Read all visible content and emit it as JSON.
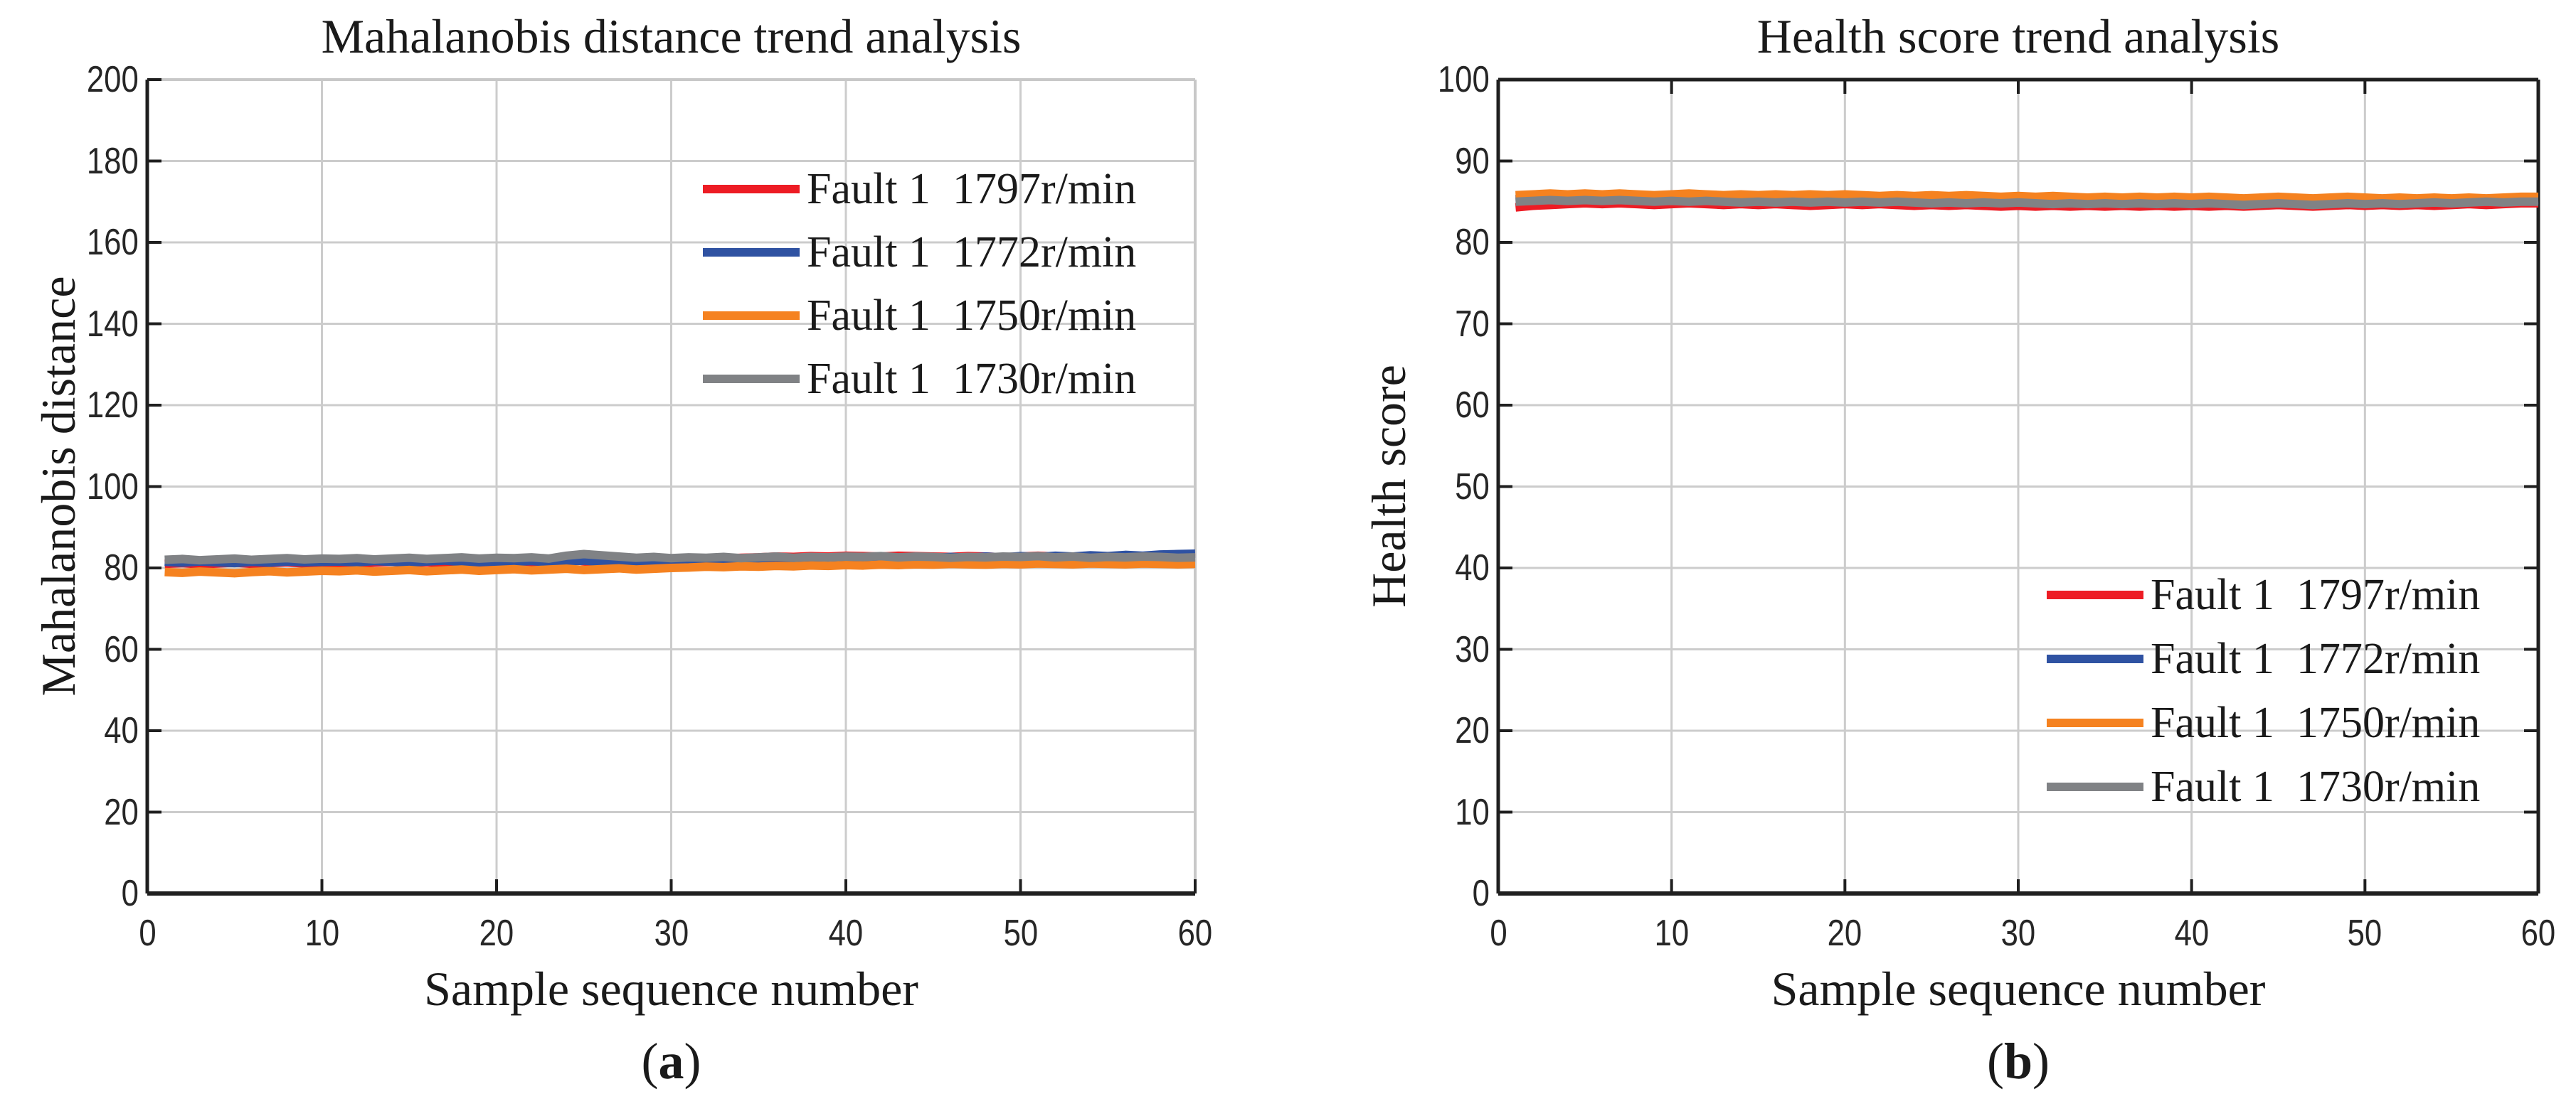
{
  "figure_captions": {
    "a": {
      "open": "(",
      "letter": "a",
      "close": ")"
    },
    "b": {
      "open": "(",
      "letter": "b",
      "close": ")"
    }
  },
  "style": {
    "series_red": "#ED1C24",
    "series_blue": "#2F52A2",
    "series_orange": "#F58220",
    "series_gray": "#808285",
    "grid_color": "#cccccc",
    "axis_color": "#1f1f1f",
    "soft_box_color": "#c8c8c8"
  },
  "chart_data": [
    {
      "id": "a",
      "type": "line",
      "title": "Mahalanobis distance trend analysis",
      "xlabel": "Sample sequence number",
      "ylabel": "Mahalanobis distance",
      "xlim": [
        0,
        60
      ],
      "ylim": [
        0,
        200
      ],
      "xticks": [
        0,
        10,
        20,
        30,
        40,
        50,
        60
      ],
      "yticks": [
        0,
        20,
        40,
        60,
        80,
        100,
        120,
        140,
        160,
        180,
        200
      ],
      "grid": true,
      "legend_location": "inside upper center-right",
      "box_style": "soft",
      "x_start": 1,
      "legend": [
        {
          "label": "Fault 1  1797r/min",
          "color": "#ED1C24"
        },
        {
          "label": "Fault 1  1772r/min",
          "color": "#2F52A2"
        },
        {
          "label": "Fault 1  1750r/min",
          "color": "#F58220"
        },
        {
          "label": "Fault 1  1730r/min",
          "color": "#808285"
        }
      ],
      "series": [
        {
          "name": "Fault 1  1797r/min",
          "color": "#ED1C24",
          "values": [
            81.0,
            81.2,
            80.9,
            81.1,
            81.3,
            81.0,
            81.2,
            81.4,
            81.1,
            81.3,
            81.2,
            81.0,
            81.3,
            81.5,
            81.2,
            81.4,
            81.1,
            81.3,
            81.2,
            81.4,
            81.3,
            81.1,
            81.8,
            82.3,
            81.6,
            81.4,
            81.9,
            81.5,
            81.3,
            81.5,
            81.8,
            82.0,
            82.3,
            82.5,
            82.6,
            82.8,
            82.7,
            82.9,
            82.8,
            83.0,
            82.9,
            82.8,
            83.0,
            82.9,
            82.8,
            82.7,
            82.9,
            82.8,
            82.6,
            82.8,
            83.0,
            82.8,
            82.6,
            82.5,
            82.4,
            82.6,
            82.5,
            82.4,
            82.6,
            82.5
          ]
        },
        {
          "name": "Fault 1  1772r/min",
          "color": "#2F52A2",
          "values": [
            81.5,
            81.3,
            81.6,
            81.4,
            81.2,
            81.5,
            81.3,
            81.6,
            81.4,
            81.5,
            81.6,
            81.4,
            81.7,
            81.5,
            81.3,
            81.6,
            81.8,
            81.5,
            81.4,
            81.6,
            81.5,
            81.7,
            81.4,
            81.6,
            81.8,
            81.5,
            81.7,
            81.6,
            81.4,
            81.7,
            81.6,
            81.8,
            82.0,
            81.9,
            82.1,
            82.2,
            82.0,
            82.3,
            82.1,
            82.4,
            82.2,
            82.5,
            82.3,
            82.6,
            82.4,
            82.7,
            82.5,
            82.8,
            82.6,
            82.9,
            82.7,
            83.0,
            82.8,
            83.1,
            82.9,
            83.2,
            83.0,
            83.3,
            83.4,
            83.5
          ]
        },
        {
          "name": "Fault 1  1750r/min",
          "color": "#F58220",
          "values": [
            79.0,
            78.8,
            79.1,
            78.9,
            78.7,
            79.0,
            79.2,
            78.9,
            79.1,
            79.3,
            79.2,
            79.4,
            79.1,
            79.3,
            79.5,
            79.2,
            79.4,
            79.6,
            79.3,
            79.5,
            79.7,
            79.4,
            79.6,
            79.8,
            79.5,
            79.7,
            79.9,
            79.6,
            79.8,
            80.0,
            80.1,
            80.3,
            80.2,
            80.4,
            80.3,
            80.5,
            80.4,
            80.6,
            80.5,
            80.7,
            80.6,
            80.8,
            80.7,
            80.9,
            80.8,
            81.0,
            80.9,
            80.8,
            81.0,
            80.9,
            81.1,
            81.0,
            80.9,
            81.1,
            81.0,
            80.9,
            81.1,
            81.0,
            80.9,
            81.0
          ]
        },
        {
          "name": "Fault 1  1730r/min",
          "color": "#808285",
          "values": [
            82.0,
            82.2,
            81.9,
            82.1,
            82.3,
            82.0,
            82.2,
            82.4,
            82.1,
            82.3,
            82.2,
            82.4,
            82.1,
            82.3,
            82.5,
            82.2,
            82.4,
            82.6,
            82.3,
            82.5,
            82.4,
            82.6,
            82.3,
            83.0,
            83.4,
            83.1,
            82.8,
            82.5,
            82.7,
            82.4,
            82.6,
            82.5,
            82.7,
            82.4,
            82.6,
            82.8,
            82.5,
            82.7,
            82.6,
            82.8,
            82.7,
            82.9,
            82.6,
            82.8,
            82.7,
            82.5,
            82.7,
            82.6,
            82.8,
            82.7,
            82.9,
            82.6,
            82.8,
            82.5,
            82.7,
            82.6,
            82.8,
            82.7,
            82.5,
            82.6
          ]
        }
      ]
    },
    {
      "id": "b",
      "type": "line",
      "title": "Health score trend analysis",
      "xlabel": "Sample sequence number",
      "ylabel": "Health score",
      "xlim": [
        0,
        60
      ],
      "ylim": [
        0,
        100
      ],
      "xticks": [
        0,
        10,
        20,
        30,
        40,
        50,
        60
      ],
      "yticks": [
        0,
        10,
        20,
        30,
        40,
        50,
        60,
        70,
        80,
        90,
        100
      ],
      "grid": true,
      "legend_location": "inside lower right",
      "box_style": "dark",
      "x_start": 1,
      "legend": [
        {
          "label": "Fault 1  1797r/min",
          "color": "#ED1C24"
        },
        {
          "label": "Fault 1  1772r/min",
          "color": "#2F52A2"
        },
        {
          "label": "Fault 1  1750r/min",
          "color": "#F58220"
        },
        {
          "label": "Fault 1  1730r/min",
          "color": "#808285"
        }
      ],
      "series": [
        {
          "name": "Fault 1  1797r/min",
          "color": "#ED1C24",
          "values": [
            84.3,
            84.5,
            84.6,
            84.7,
            84.8,
            84.7,
            84.8,
            84.7,
            84.6,
            84.7,
            84.8,
            84.7,
            84.6,
            84.7,
            84.6,
            84.7,
            84.6,
            84.5,
            84.6,
            84.7,
            84.6,
            84.7,
            84.6,
            84.5,
            84.6,
            84.5,
            84.6,
            84.5,
            84.4,
            84.5,
            84.4,
            84.5,
            84.4,
            84.5,
            84.4,
            84.5,
            84.4,
            84.5,
            84.4,
            84.5,
            84.4,
            84.5,
            84.4,
            84.5,
            84.6,
            84.5,
            84.4,
            84.5,
            84.6,
            84.5,
            84.6,
            84.5,
            84.6,
            84.5,
            84.6,
            84.7,
            84.6,
            84.7,
            84.8,
            84.8
          ]
        },
        {
          "name": "Fault 1  1772r/min",
          "color": "#2F52A2",
          "values": [
            85.3,
            85.4,
            85.5,
            85.4,
            85.5,
            85.4,
            85.5,
            85.4,
            85.3,
            85.4,
            85.5,
            85.4,
            85.3,
            85.4,
            85.3,
            85.4,
            85.3,
            85.4,
            85.3,
            85.4,
            85.3,
            85.2,
            85.3,
            85.2,
            85.3,
            85.2,
            85.3,
            85.2,
            85.1,
            85.2,
            85.1,
            85.2,
            85.1,
            85.2,
            85.1,
            85.0,
            85.1,
            85.0,
            85.1,
            85.0,
            85.1,
            85.0,
            85.1,
            85.0,
            85.1,
            85.0,
            84.9,
            85.0,
            85.1,
            85.0,
            85.1,
            85.0,
            84.9,
            85.0,
            85.1,
            85.0,
            85.1,
            85.0,
            85.1,
            85.2
          ]
        },
        {
          "name": "Fault 1  1750r/min",
          "color": "#F58220",
          "values": [
            85.8,
            85.9,
            86.0,
            85.9,
            86.0,
            85.9,
            86.0,
            85.9,
            85.8,
            85.9,
            86.0,
            85.9,
            85.8,
            85.9,
            85.8,
            85.9,
            85.8,
            85.9,
            85.8,
            85.9,
            85.8,
            85.7,
            85.8,
            85.7,
            85.8,
            85.7,
            85.8,
            85.7,
            85.6,
            85.7,
            85.6,
            85.7,
            85.6,
            85.5,
            85.6,
            85.5,
            85.6,
            85.5,
            85.6,
            85.5,
            85.6,
            85.5,
            85.4,
            85.5,
            85.6,
            85.5,
            85.4,
            85.5,
            85.6,
            85.5,
            85.4,
            85.5,
            85.4,
            85.5,
            85.4,
            85.5,
            85.4,
            85.5,
            85.6,
            85.6
          ]
        },
        {
          "name": "Fault 1  1730r/min",
          "color": "#808285",
          "values": [
            85.0,
            85.1,
            85.2,
            85.1,
            85.2,
            85.1,
            85.2,
            85.1,
            85.0,
            85.1,
            85.0,
            85.1,
            85.0,
            84.9,
            85.0,
            84.9,
            85.0,
            84.9,
            85.0,
            84.9,
            85.0,
            84.9,
            85.0,
            84.9,
            84.8,
            84.9,
            84.8,
            84.9,
            84.8,
            84.9,
            84.8,
            84.7,
            84.8,
            84.7,
            84.8,
            84.7,
            84.8,
            84.7,
            84.8,
            84.7,
            84.8,
            84.7,
            84.6,
            84.7,
            84.8,
            84.7,
            84.6,
            84.7,
            84.8,
            84.7,
            84.8,
            84.7,
            84.8,
            84.9,
            84.8,
            84.9,
            85.0,
            84.9,
            85.0,
            85.0
          ]
        }
      ]
    }
  ]
}
